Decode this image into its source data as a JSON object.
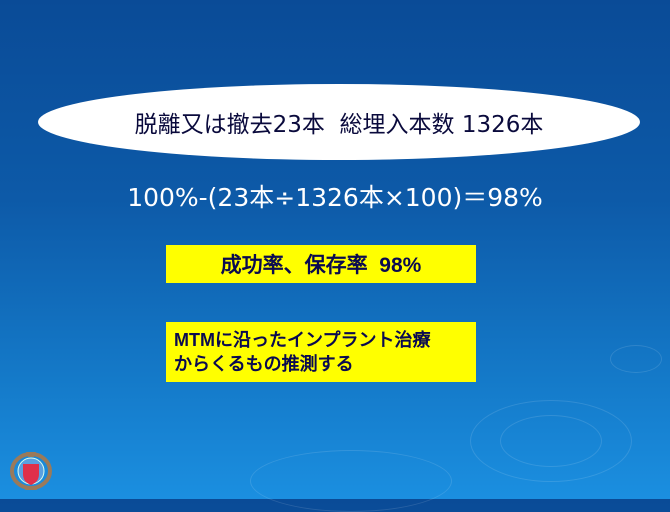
{
  "slide": {
    "headline": "脱離又は撤去23本  総埋入本数 1326本",
    "formula": "100%-(23本÷1326本×100)＝98%",
    "success_rate_box": "成功率、保存率  98%",
    "note_box": [
      "MTMに沿ったインプラント治療",
      "からくるもの推測する"
    ],
    "colors": {
      "background_top": "#0a4b97",
      "background_bottom": "#1b8fe0",
      "highlight": "#ffff00",
      "text_dark": "#0a0a50"
    }
  }
}
